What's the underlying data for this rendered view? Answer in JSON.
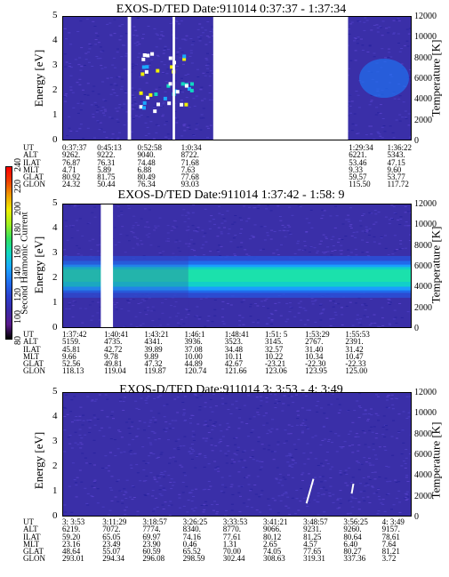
{
  "colorbar": {
    "label": "Second Harmonic Current",
    "ticks": [
      "80",
      "100",
      "120",
      "140",
      "160",
      "180",
      "200",
      "220",
      "240"
    ],
    "colors": [
      "#000000",
      "#5a1a8c",
      "#3a2aa8",
      "#2a40d0",
      "#1f70f0",
      "#1aa8ff",
      "#10d8c0",
      "#30e060",
      "#a0f020",
      "#f0f000",
      "#f0a000",
      "#f04000",
      "#ff0000"
    ]
  },
  "panels": [
    {
      "id": "panel1",
      "title": "EXOS-D/TED   Date:911014  0:37:37 - 1:37:34",
      "ylabel_left": "Energy [eV]",
      "ylabel_right": "Temperature [K]",
      "left_ticks": [
        "0",
        "1",
        "2",
        "3",
        "4",
        "5"
      ],
      "right_ticks": [
        "0",
        "2000",
        "4000",
        "6000",
        "8000",
        "10000",
        "12000"
      ],
      "table": {
        "labels": [
          "UT",
          "ALT",
          "ILAT",
          "MLT",
          "GLAT",
          "GLON"
        ],
        "columns": [
          {
            "pos": 0.0,
            "v": [
              "0:37:37",
              "9262.",
              "76.87",
              "4.71",
              "80.92",
              "24.32"
            ]
          },
          {
            "pos": 0.1,
            "v": [
              "0:45:13",
              "9222.",
              "76.31",
              "5.89",
              "81.75",
              "50.44"
            ]
          },
          {
            "pos": 0.215,
            "v": [
              "0:52:58",
              "9040.",
              "74.48",
              "6.88",
              "80.49",
              "76.34"
            ]
          },
          {
            "pos": 0.34,
            "v": [
              "1:0:34",
              "8722.",
              "71.68",
              "7.63",
              "77.68",
              "93.03"
            ]
          },
          {
            "pos": 0.82,
            "v": [
              "1:29:34",
              "6221.",
              "53.46",
              "9.33",
              "59.57",
              "115.50"
            ]
          },
          {
            "pos": 0.93,
            "v": [
              "1:36:22",
              "5343.",
              "47.15",
              "9.60",
              "53.77",
              "117.72"
            ]
          }
        ]
      }
    },
    {
      "id": "panel2",
      "title": "EXOS-D/TED   Date:911014  1:37:42 - 1:58: 9",
      "ylabel_left": "Energy [eV]",
      "ylabel_right": "Temperature [K]",
      "left_ticks": [
        "0",
        "1",
        "2",
        "3",
        "4",
        "5"
      ],
      "right_ticks": [
        "0",
        "2000",
        "4000",
        "6000",
        "8000",
        "10000",
        "12000"
      ],
      "table": {
        "labels": [
          "UT",
          "ALT",
          "ILAT",
          "MLT",
          "GLAT",
          "GLON"
        ],
        "columns": [
          {
            "pos": 0.0,
            "v": [
              "1:37:42",
              "5159.",
              "45.81",
              "9.66",
              "52.56",
              "118.13"
            ]
          },
          {
            "pos": 0.12,
            "v": [
              "1:40:41",
              "4735.",
              "42.72",
              "9.78",
              "49.81",
              "119.04"
            ]
          },
          {
            "pos": 0.235,
            "v": [
              "1:43:21",
              "4341.",
              "39.89",
              "9.89",
              "47.32",
              "119.87"
            ]
          },
          {
            "pos": 0.35,
            "v": [
              "1:46:1",
              "3936.",
              "37.08",
              "10.00",
              "44.89",
              "120.74"
            ]
          },
          {
            "pos": 0.465,
            "v": [
              "1:48:41",
              "3523.",
              "34.48",
              "10.11",
              "42.67",
              "121.66"
            ]
          },
          {
            "pos": 0.58,
            "v": [
              "1:51: 5",
              "3145.",
              "32.57",
              "10.22",
              "-23.21",
              "123.06"
            ]
          },
          {
            "pos": 0.695,
            "v": [
              "1:53:29",
              "2767.",
              "31.40",
              "10.34",
              "-22.30",
              "123.95"
            ]
          },
          {
            "pos": 0.81,
            "v": [
              "1:55:53",
              "2391.",
              "31.42",
              "10.47",
              "-22.33",
              "125.00"
            ]
          }
        ]
      }
    },
    {
      "id": "panel3",
      "title": "EXOS-D/TED   Date:911014  3: 3:53 - 4: 3:49",
      "ylabel_left": "Energy [eV]",
      "ylabel_right": "Temperature [K]",
      "left_ticks": [
        "0",
        "1",
        "2",
        "3",
        "4",
        "5"
      ],
      "right_ticks": [
        "0",
        "2000",
        "4000",
        "6000",
        "8000",
        "10000",
        "12000"
      ],
      "table": {
        "labels": [
          "UT",
          "ALT",
          "ILAT",
          "MLT",
          "GLAT",
          "GLON"
        ],
        "columns": [
          {
            "pos": 0.0,
            "v": [
              "3: 3:53",
              "6219.",
              "59.20",
              "23.16",
              "48.64",
              "293.01"
            ]
          },
          {
            "pos": 0.115,
            "v": [
              "3:11:29",
              "7072.",
              "65.05",
              "23.49",
              "55.07",
              "294.34"
            ]
          },
          {
            "pos": 0.23,
            "v": [
              "3:18:57",
              "7774.",
              "69.97",
              "23.90",
              "60.59",
              "296.08"
            ]
          },
          {
            "pos": 0.345,
            "v": [
              "3:26:25",
              "8340.",
              "74.16",
              "0.46",
              "65.52",
              "298.59"
            ]
          },
          {
            "pos": 0.46,
            "v": [
              "3:33:53",
              "8770.",
              "77.61",
              "1.31",
              "70.00",
              "302.44"
            ]
          },
          {
            "pos": 0.575,
            "v": [
              "3:41:21",
              "9066.",
              "80.12",
              "2.65",
              "74.05",
              "308.63"
            ]
          },
          {
            "pos": 0.69,
            "v": [
              "3:48:57",
              "9231.",
              "81.25",
              "4.57",
              "77.65",
              "319.31"
            ]
          },
          {
            "pos": 0.805,
            "v": [
              "3:56:25",
              "9260.",
              "80.64",
              "6.40",
              "80.27",
              "337.36"
            ]
          },
          {
            "pos": 0.915,
            "v": [
              "4: 3:49",
              "9157.",
              "78.61",
              "7.64",
              "81.21",
              "3.72"
            ]
          }
        ]
      }
    }
  ],
  "chart_data": [
    {
      "type": "heatmap",
      "title": "EXOS-D/TED   Date:911014  0:37:37 - 1:37:34",
      "ylabel": "Energy [eV]",
      "y2label": "Temperature [K]",
      "ylim": [
        0,
        5
      ],
      "y2lim": [
        0,
        12000
      ],
      "x_start": "0:37:37",
      "x_end": "1:37:34",
      "data_gaps": [
        [
          "0:48:45",
          "0:49:20"
        ],
        [
          "0:56:30",
          "0:56:55"
        ],
        [
          "1:03:30",
          "1:26:45"
        ]
      ],
      "description_values": {
        "background_level": 100,
        "spot_energy_range_eV": [
          1.2,
          3.6
        ]
      }
    },
    {
      "type": "heatmap",
      "title": "EXOS-D/TED   Date:911014  1:37:42 - 1:58: 9",
      "ylabel": "Energy [eV]",
      "y2label": "Temperature [K]",
      "ylim": [
        0,
        5
      ],
      "y2lim": [
        0,
        12000
      ],
      "x_start": "1:37:42",
      "x_end": "1:58: 9",
      "data_gaps": [
        [
          "1:39:55",
          "1:40:38"
        ]
      ],
      "band_peak_energy_eV": 2.1,
      "band_range_eV": [
        1.5,
        2.6
      ]
    },
    {
      "type": "heatmap",
      "title": "EXOS-D/TED   Date:911014  3: 3:53 - 4: 3:49",
      "ylabel": "Energy [eV]",
      "y2label": "Temperature [K]",
      "ylim": [
        0,
        5
      ],
      "y2lim": [
        0,
        12000
      ],
      "x_start": "3: 3:53",
      "x_end": "4: 3:49",
      "data_gaps": []
    }
  ]
}
